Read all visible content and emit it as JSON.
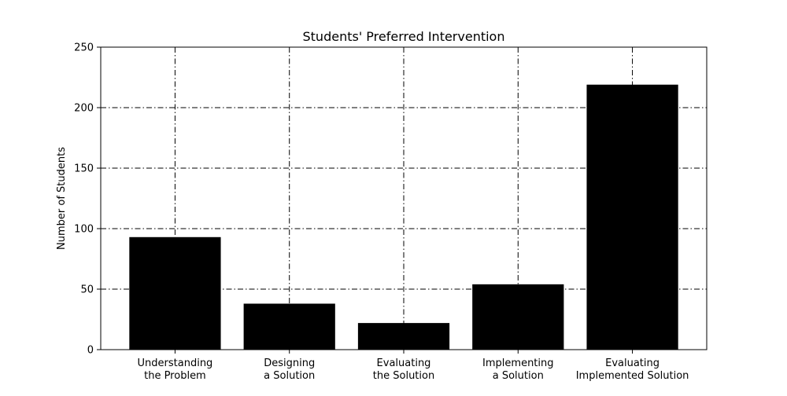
{
  "chart_data": {
    "type": "bar",
    "title": "Students' Preferred Intervention",
    "xlabel": "",
    "ylabel": "Number of Students",
    "categories": [
      [
        "Understanding",
        "the Problem"
      ],
      [
        "Designing",
        "a Solution"
      ],
      [
        "Evaluating",
        "the Solution"
      ],
      [
        "Implementing",
        "a Solution"
      ],
      [
        "Evaluating",
        "Implemented Solution"
      ]
    ],
    "values": [
      93,
      38,
      22,
      54,
      219
    ],
    "ylim": [
      0,
      250
    ],
    "yticks": [
      0,
      50,
      100,
      150,
      200,
      250
    ],
    "grid": true,
    "grid_style": "dash-dot",
    "bar_color": "#000000",
    "legend": "none"
  }
}
